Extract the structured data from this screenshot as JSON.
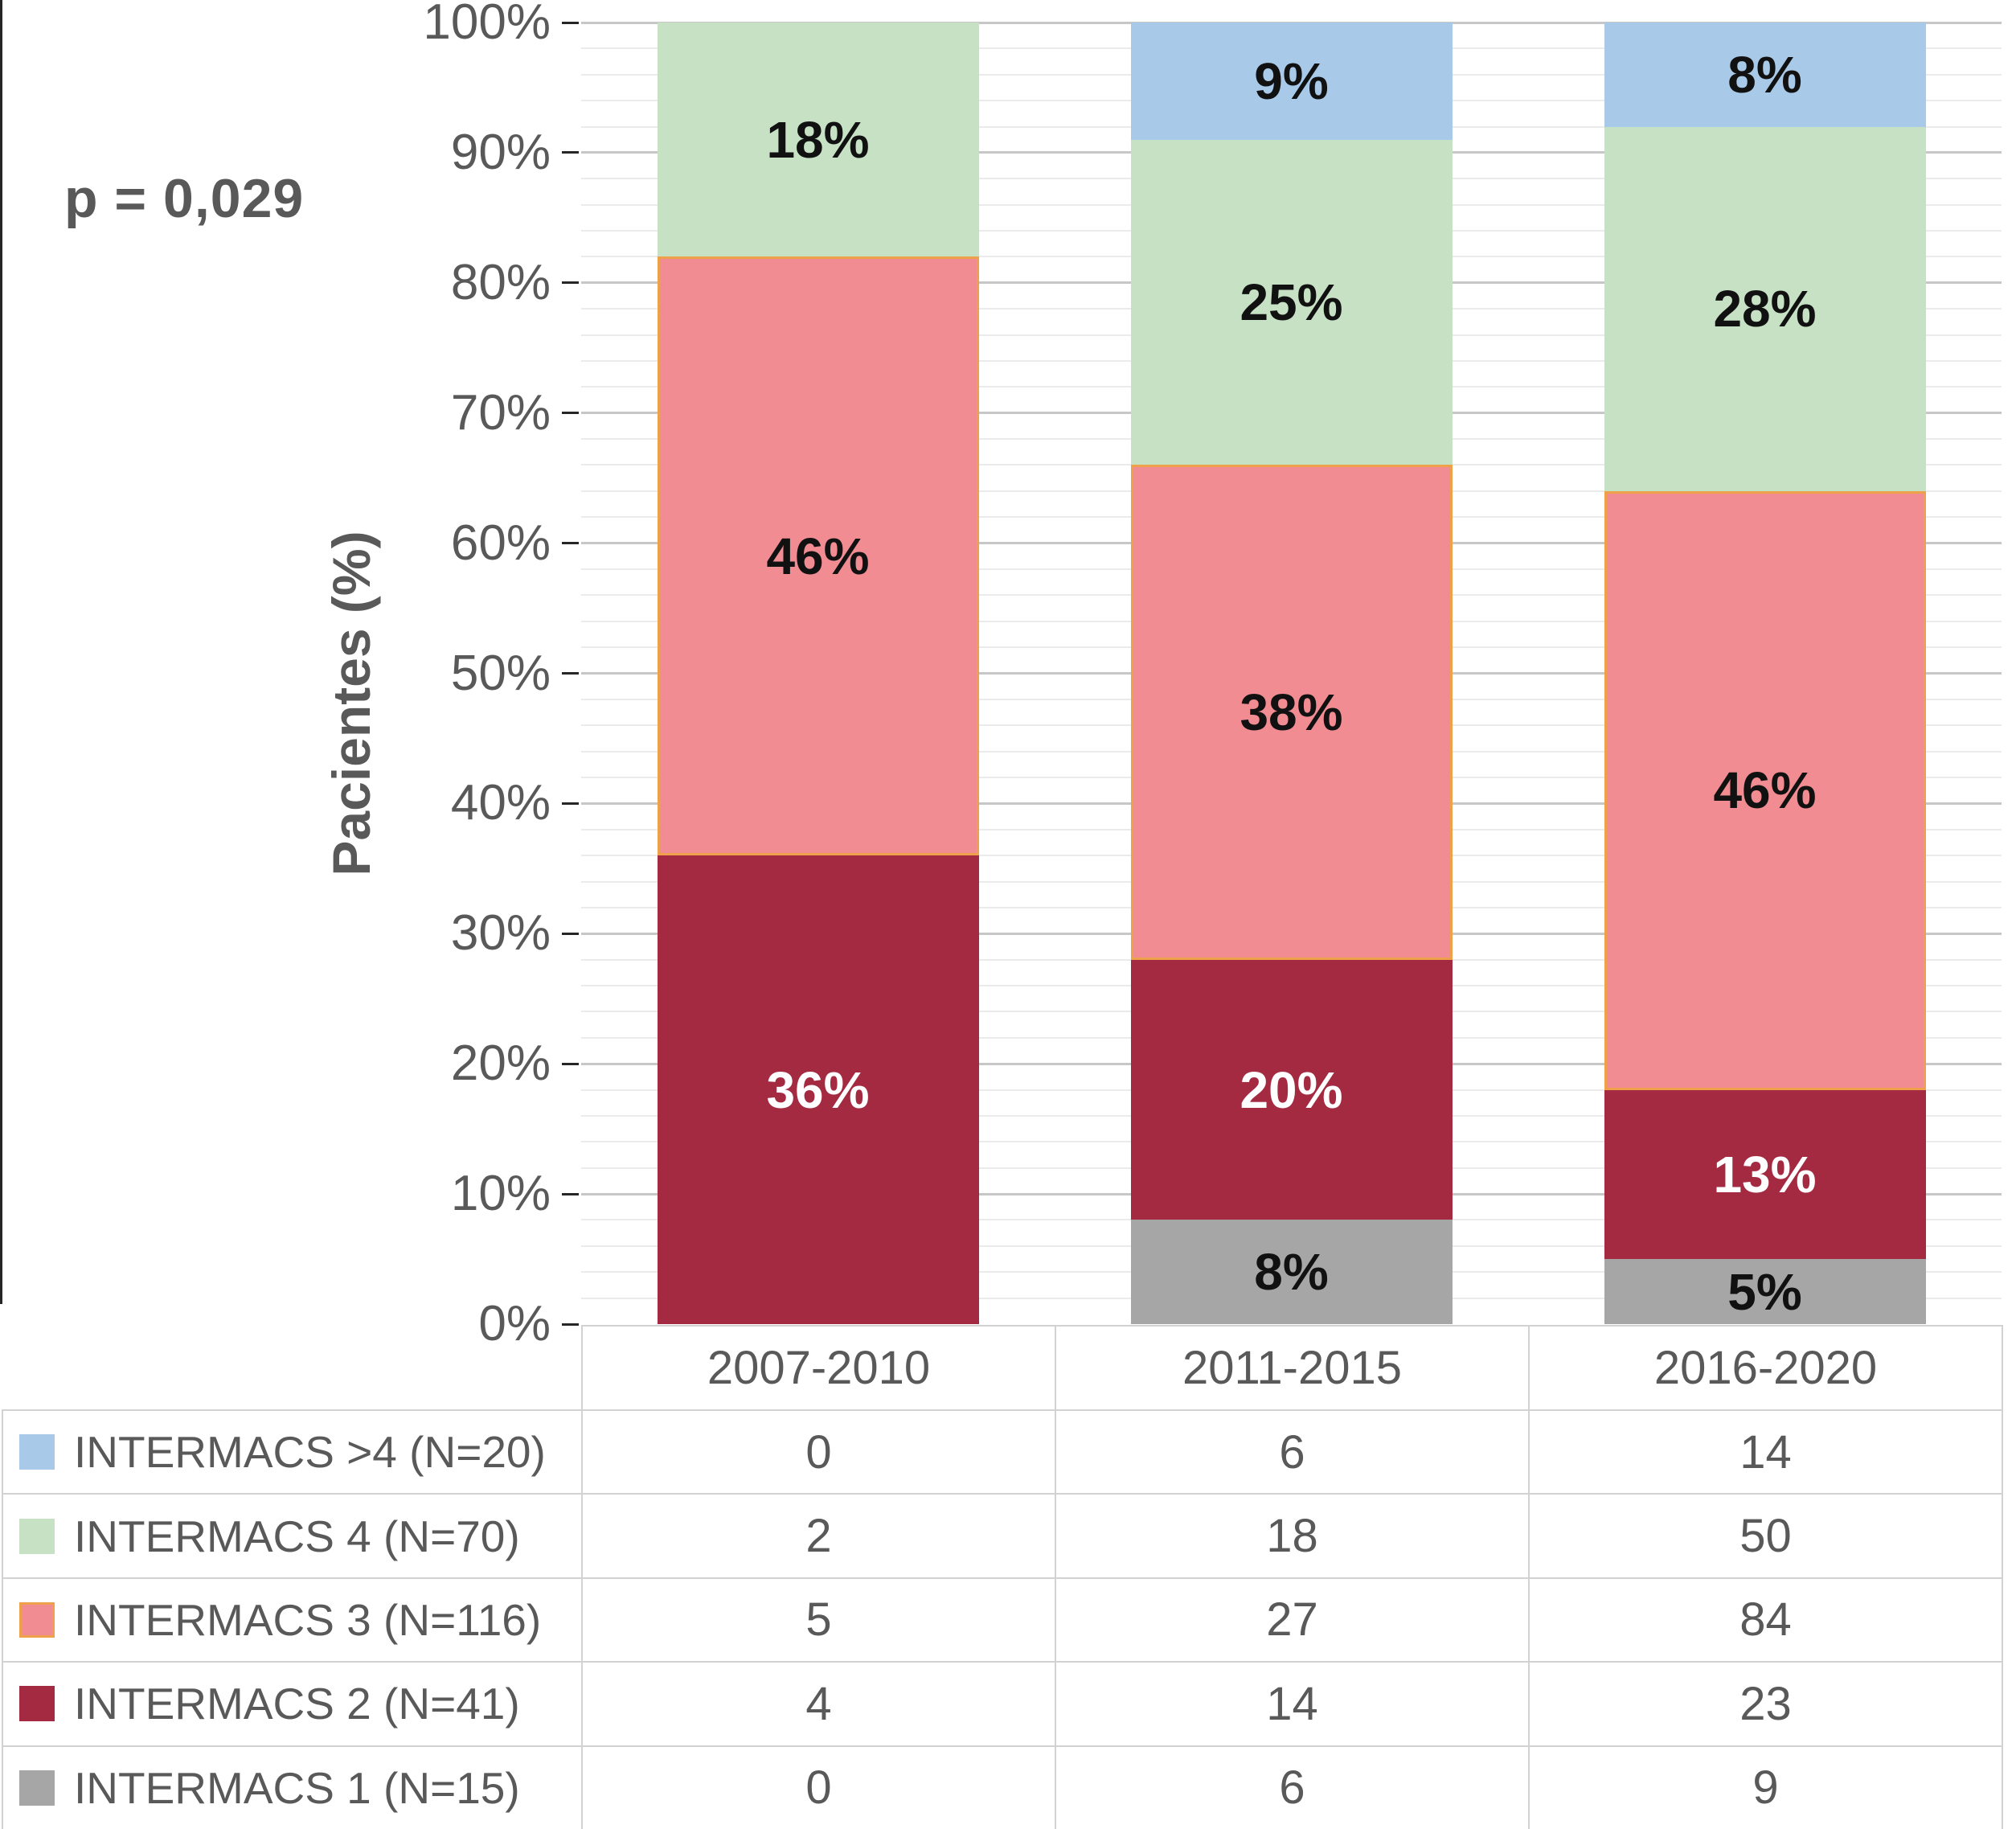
{
  "annotations": {
    "p_value": "p = 0,029"
  },
  "chart_data": {
    "type": "bar",
    "stacked": true,
    "title": "",
    "xlabel": "",
    "ylabel": "Pacientes (%)",
    "ylim": [
      0,
      100
    ],
    "y_major_step": 10,
    "y_minor_step": 2,
    "grid": "on",
    "legend_position": "table-below-left-column",
    "y_tick_labels": [
      "0%",
      "10%",
      "20%",
      "30%",
      "40%",
      "50%",
      "60%",
      "70%",
      "80%",
      "90%",
      "100%"
    ],
    "categories": [
      "2007-2010",
      "2011-2015",
      "2016-2020"
    ],
    "series": [
      {
        "name": "INTERMACS >4 (N=20)",
        "color": "#a9c9e9",
        "label_color": "#111111",
        "counts": [
          0,
          6,
          14
        ],
        "percents": [
          0,
          9,
          8
        ],
        "percent_labels": [
          "",
          "9%",
          "8%"
        ]
      },
      {
        "name": "INTERMACS 4 (N=70)",
        "color": "#c7e1c5",
        "label_color": "#111111",
        "counts": [
          2,
          18,
          50
        ],
        "percents": [
          18,
          25,
          28
        ],
        "percent_labels": [
          "18%",
          "25%",
          "28%"
        ]
      },
      {
        "name": "INTERMACS 3 (N=116)",
        "color": "#f08c92",
        "border_color": "#efa04b",
        "label_color": "#111111",
        "counts": [
          5,
          27,
          84
        ],
        "percents": [
          46,
          38,
          46
        ],
        "percent_labels": [
          "46%",
          "38%",
          "46%"
        ]
      },
      {
        "name": "INTERMACS 2 (N=41)",
        "color": "#a42a42",
        "label_color": "#ffffff",
        "counts": [
          4,
          14,
          23
        ],
        "percents": [
          36,
          20,
          13
        ],
        "percent_labels": [
          "36%",
          "20%",
          "13%"
        ]
      },
      {
        "name": "INTERMACS 1 (N=15)",
        "color": "#a6a6a6",
        "label_color": "#111111",
        "counts": [
          0,
          6,
          9
        ],
        "percents": [
          0,
          8,
          5
        ],
        "percent_labels": [
          "",
          "8%",
          "5%"
        ]
      }
    ]
  }
}
